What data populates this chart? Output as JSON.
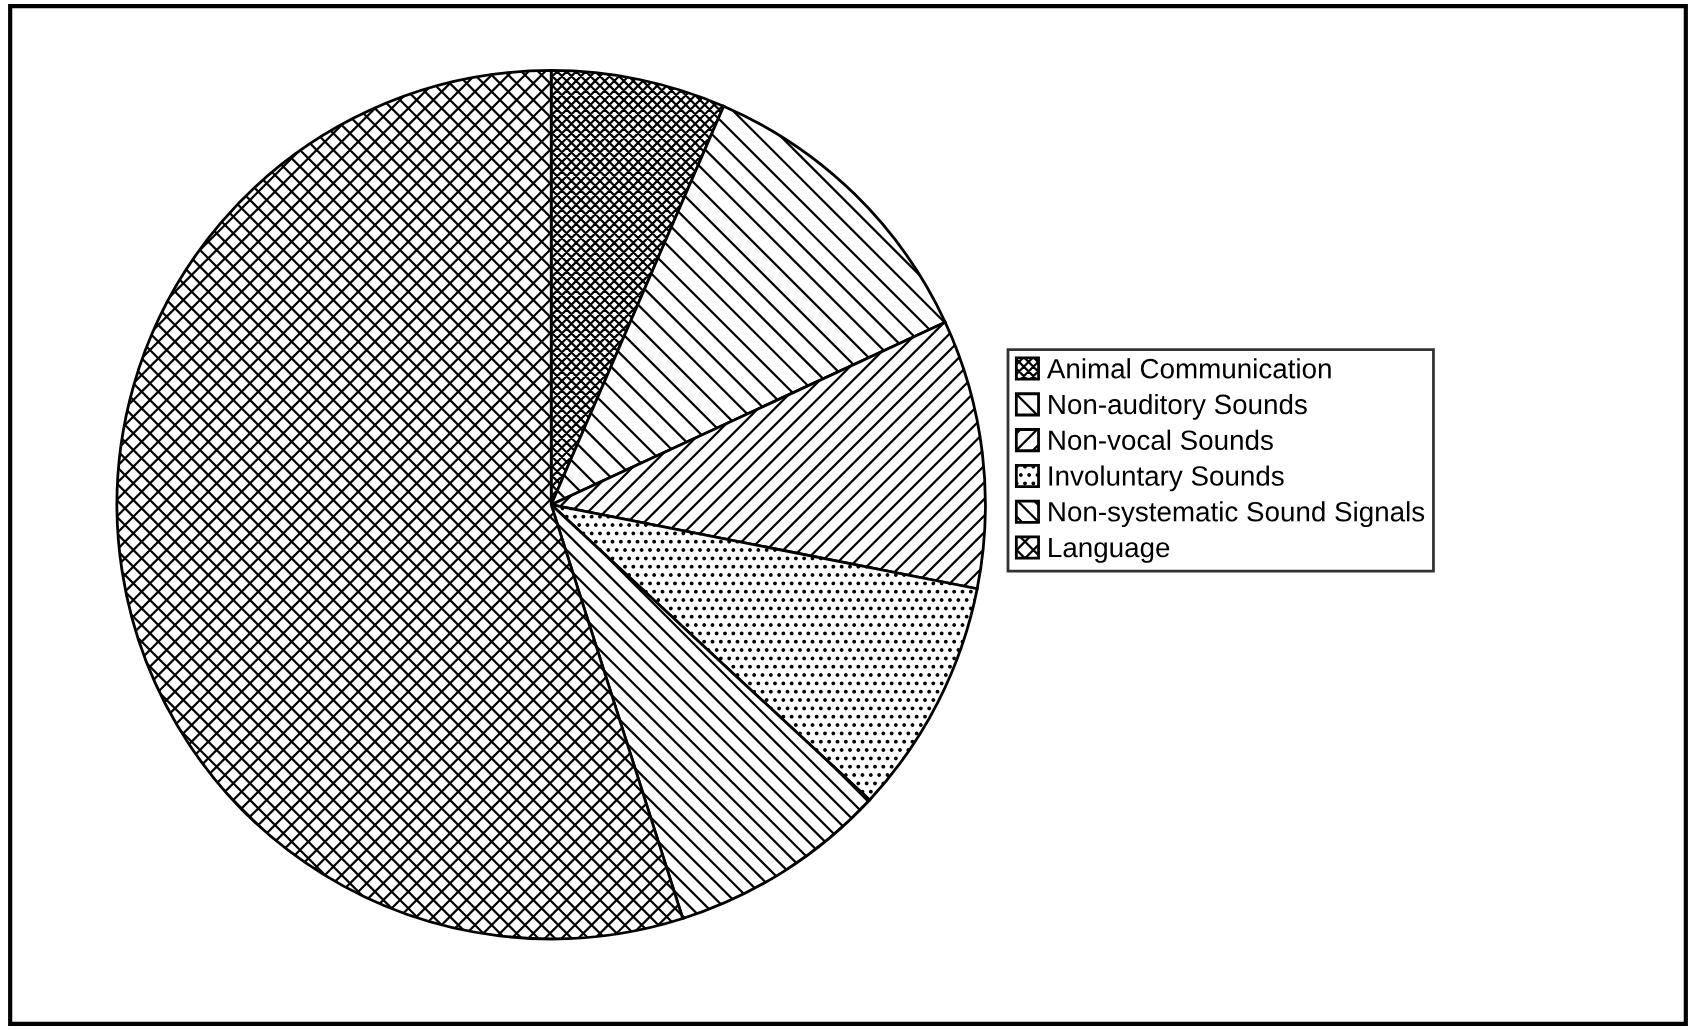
{
  "chart_data": {
    "type": "pie",
    "categories": [
      "Animal Communication",
      "Non-auditory Sounds",
      "Non-vocal Sounds",
      "Involuntary Sounds",
      "Non-systematic Sound Signals",
      "Language"
    ],
    "values": [
      6.5,
      11.6,
      10,
      8.8,
      8.2,
      54.9
    ],
    "colors": [
      "#000000",
      "#000000",
      "#000000",
      "#000000",
      "#000000",
      "#000000"
    ],
    "legend": "right"
  }
}
